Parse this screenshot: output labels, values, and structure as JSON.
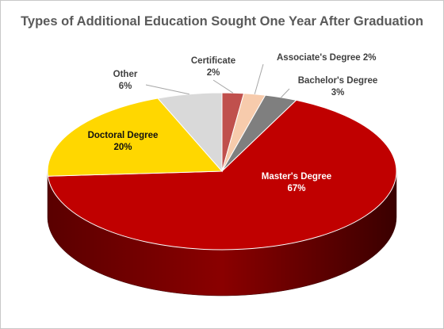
{
  "chart_data": {
    "type": "pie",
    "title": "Types of Additional Education Sought One Year After Graduation",
    "slices": [
      {
        "name": "Certificate",
        "label": "Certificate",
        "value": 2,
        "value_label": "2%",
        "color": "#c0504d"
      },
      {
        "name": "Associate's Degree",
        "label": "Associate's Degree",
        "value": 2,
        "value_label": "2%",
        "color": "#f7cbac"
      },
      {
        "name": "Bachelor's Degree",
        "label": "Bachelor's Degree",
        "value": 3,
        "value_label": "3%",
        "color": "#7f7f7f"
      },
      {
        "name": "Master's Degree",
        "label": "Master's Degree",
        "value": 67,
        "value_label": "67%",
        "color": "#c00000"
      },
      {
        "name": "Doctoral Degree",
        "label": "Doctoral Degree",
        "value": 20,
        "value_label": "20%",
        "color": "#ffd700"
      },
      {
        "name": "Other",
        "label": "Other",
        "value": 6,
        "value_label": "6%",
        "color": "#d9d9d9"
      }
    ],
    "legend": "none",
    "style": "3d-pie"
  }
}
